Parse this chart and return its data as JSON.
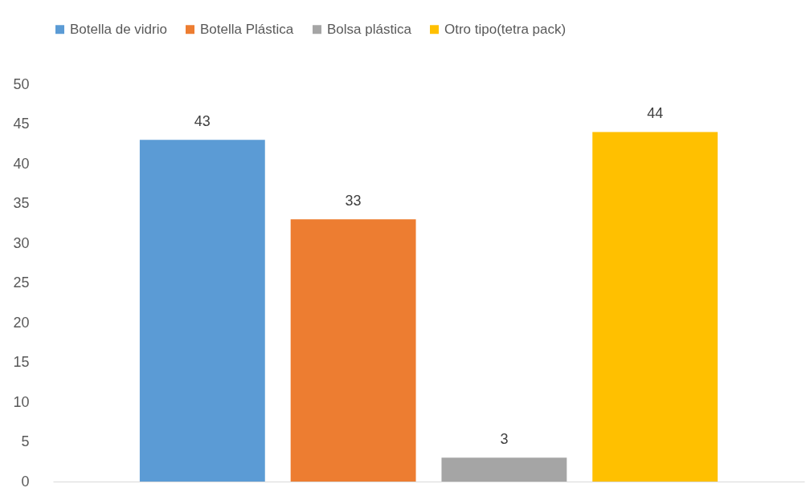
{
  "chart_data": {
    "type": "bar",
    "categories": [
      null
    ],
    "series": [
      {
        "name": "Botella de vidrio",
        "color": "#5b9bd5",
        "values": [
          43
        ]
      },
      {
        "name": "Botella Plástica",
        "color": "#ed7d31",
        "values": [
          33
        ]
      },
      {
        "name": "Bolsa plástica",
        "color": "#a5a5a5",
        "values": [
          3
        ]
      },
      {
        "name": "Otro tipo(tetra pack)",
        "color": "#ffc000",
        "values": [
          44
        ]
      }
    ],
    "ylim": [
      0,
      50
    ],
    "yticks": [
      0,
      5,
      10,
      15,
      20,
      25,
      30,
      35,
      40,
      45,
      50
    ],
    "grid": false,
    "legend": "top",
    "data_labels": true
  }
}
